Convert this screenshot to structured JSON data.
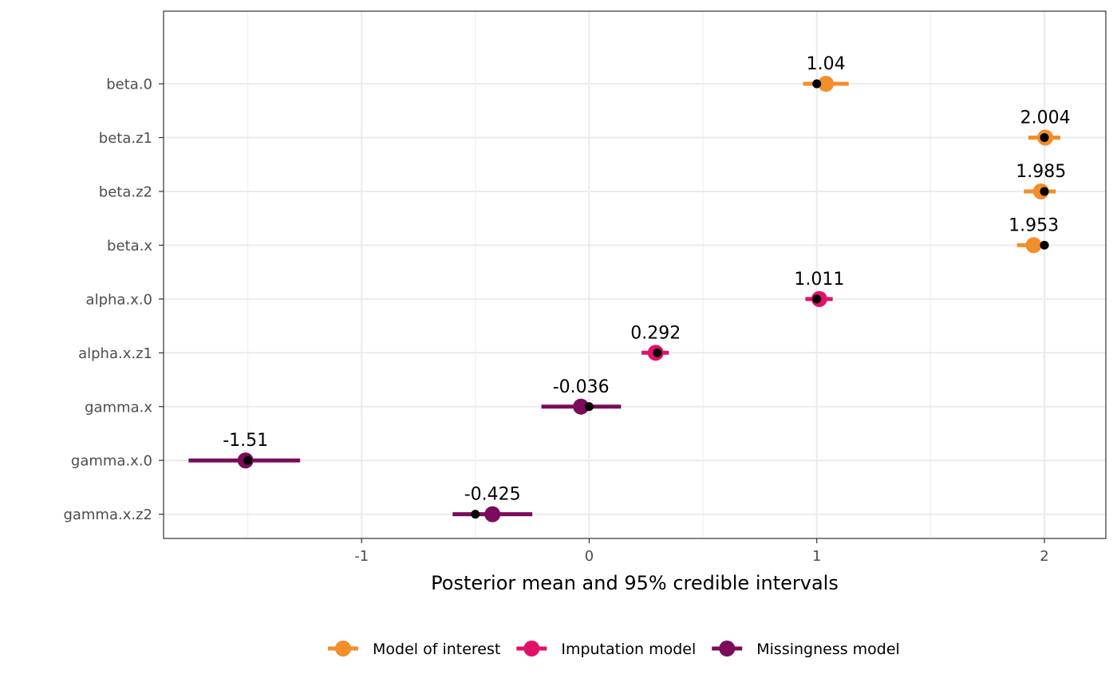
{
  "chart_data": {
    "type": "scatter",
    "subtype": "dot-and-interval",
    "xlabel": "Posterior mean and 95% credible intervals",
    "ylabel": "",
    "xlim": [
      -1.87,
      2.27
    ],
    "xticks": [
      -1,
      0,
      1,
      2
    ],
    "x_tick_labels": [
      "-1",
      "0",
      "1",
      "2"
    ],
    "grid": true,
    "legend_position": "bottom",
    "categories": [
      "beta.0",
      "beta.z1",
      "beta.z2",
      "beta.x",
      "alpha.x.0",
      "alpha.x.z1",
      "gamma.x",
      "gamma.x.0",
      "gamma.x.z2"
    ],
    "series": [
      {
        "name": "Model of interest",
        "color": "#F28E2B",
        "points": [
          {
            "category": "beta.0",
            "mean": 1.04,
            "lower": 0.94,
            "upper": 1.14,
            "true_value": 1.0,
            "label": "1.04"
          },
          {
            "category": "beta.z1",
            "mean": 2.004,
            "lower": 1.93,
            "upper": 2.07,
            "true_value": 2.0,
            "label": "2.004"
          },
          {
            "category": "beta.z2",
            "mean": 1.985,
            "lower": 1.91,
            "upper": 2.05,
            "true_value": 2.0,
            "label": "1.985"
          },
          {
            "category": "beta.x",
            "mean": 1.953,
            "lower": 1.88,
            "upper": 2.02,
            "true_value": 2.0,
            "label": "1.953"
          }
        ]
      },
      {
        "name": "Imputation model",
        "color": "#E0116B",
        "points": [
          {
            "category": "alpha.x.0",
            "mean": 1.011,
            "lower": 0.95,
            "upper": 1.07,
            "true_value": 1.0,
            "label": "1.011"
          },
          {
            "category": "alpha.x.z1",
            "mean": 0.292,
            "lower": 0.23,
            "upper": 0.35,
            "true_value": 0.3,
            "label": "0.292"
          }
        ]
      },
      {
        "name": "Missingness model",
        "color": "#7B0B5B",
        "points": [
          {
            "category": "gamma.x",
            "mean": -0.036,
            "lower": -0.21,
            "upper": 0.14,
            "true_value": 0.0,
            "label": "-0.036"
          },
          {
            "category": "gamma.x.0",
            "mean": -1.51,
            "lower": -1.76,
            "upper": -1.27,
            "true_value": -1.5,
            "label": "-1.51"
          },
          {
            "category": "gamma.x.z2",
            "mean": -0.425,
            "lower": -0.6,
            "upper": -0.25,
            "true_value": -0.5,
            "label": "-0.425"
          }
        ]
      }
    ]
  }
}
